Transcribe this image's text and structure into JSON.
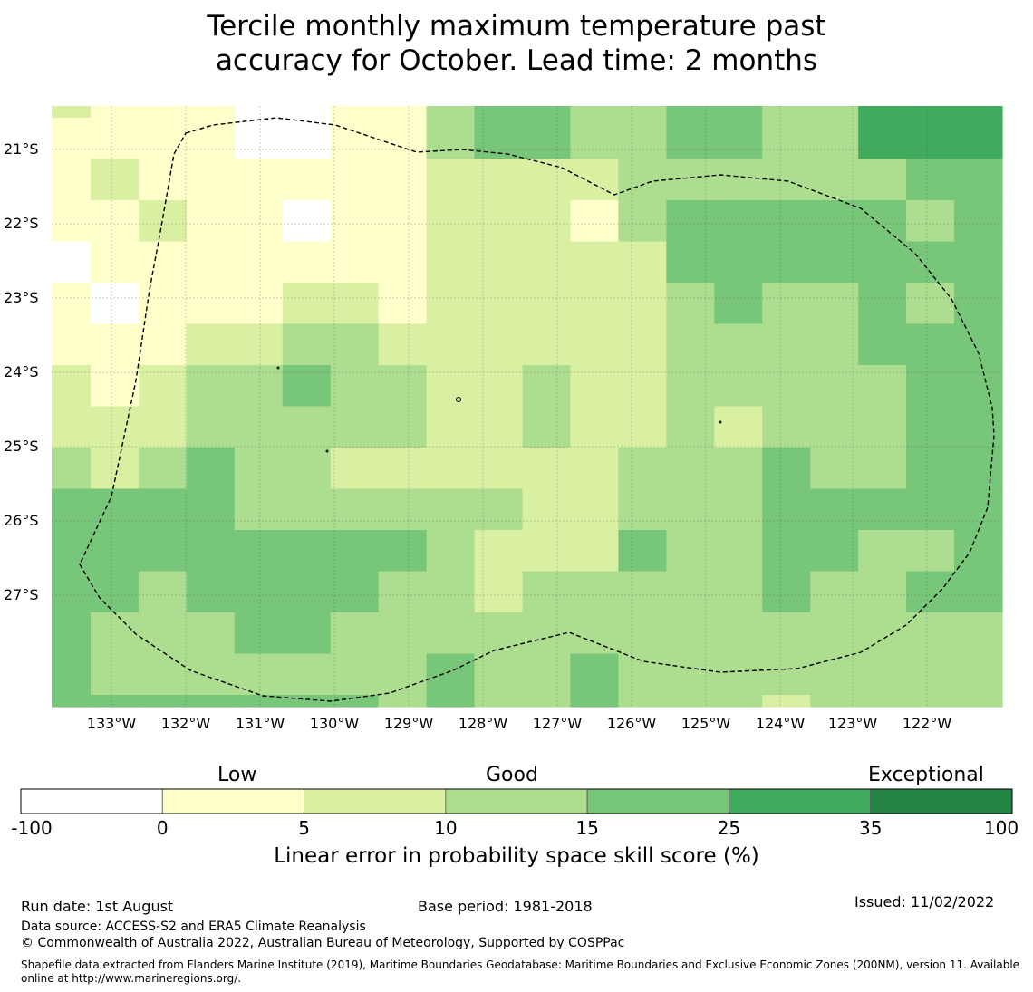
{
  "title": {
    "line1": "Tercile monthly maximum temperature past",
    "line2": "accuracy for October. Lead time: 2 months"
  },
  "map": {
    "lat_labels": [
      "21°S",
      "22°S",
      "23°S",
      "24°S",
      "25°S",
      "26°S",
      "27°S"
    ],
    "lon_labels": [
      "133°W",
      "132°W",
      "131°W",
      "130°W",
      "129°W",
      "128°W",
      "127°W",
      "126°W",
      "125°W",
      "124°W",
      "123°W",
      "122°W"
    ],
    "grid": [
      [
        2,
        1,
        1,
        1,
        0,
        0,
        1,
        1,
        3,
        4,
        4,
        3,
        3,
        4,
        4,
        3,
        3,
        5,
        5,
        5
      ],
      [
        1,
        1,
        1,
        1,
        0,
        0,
        1,
        1,
        3,
        4,
        4,
        3,
        3,
        4,
        4,
        3,
        3,
        5,
        5,
        5
      ],
      [
        1,
        2,
        1,
        1,
        1,
        1,
        1,
        1,
        2,
        2,
        2,
        2,
        3,
        3,
        3,
        3,
        3,
        3,
        4,
        4
      ],
      [
        1,
        1,
        2,
        1,
        1,
        0,
        1,
        1,
        2,
        2,
        2,
        1,
        3,
        4,
        4,
        4,
        4,
        4,
        3,
        4
      ],
      [
        0,
        1,
        1,
        1,
        1,
        1,
        1,
        1,
        2,
        2,
        2,
        2,
        2,
        4,
        4,
        4,
        4,
        4,
        4,
        4
      ],
      [
        1,
        0,
        1,
        1,
        1,
        2,
        2,
        1,
        2,
        2,
        2,
        2,
        2,
        3,
        4,
        3,
        3,
        4,
        3,
        4
      ],
      [
        1,
        1,
        1,
        2,
        2,
        3,
        3,
        2,
        2,
        2,
        2,
        2,
        2,
        3,
        3,
        3,
        3,
        4,
        4,
        4
      ],
      [
        2,
        1,
        2,
        3,
        3,
        4,
        3,
        3,
        2,
        2,
        3,
        2,
        2,
        3,
        3,
        3,
        3,
        3,
        4,
        4
      ],
      [
        2,
        2,
        2,
        3,
        3,
        3,
        3,
        3,
        2,
        2,
        3,
        2,
        2,
        3,
        2,
        3,
        3,
        3,
        4,
        4
      ],
      [
        3,
        2,
        3,
        4,
        3,
        3,
        2,
        2,
        2,
        2,
        2,
        2,
        3,
        3,
        3,
        4,
        3,
        3,
        4,
        4
      ],
      [
        4,
        4,
        4,
        4,
        3,
        3,
        3,
        3,
        3,
        3,
        2,
        2,
        3,
        3,
        3,
        4,
        4,
        4,
        4,
        4
      ],
      [
        4,
        4,
        4,
        4,
        4,
        4,
        4,
        4,
        3,
        2,
        2,
        2,
        4,
        3,
        3,
        4,
        4,
        3,
        3,
        4
      ],
      [
        4,
        4,
        3,
        4,
        4,
        4,
        4,
        3,
        3,
        2,
        3,
        3,
        3,
        3,
        3,
        4,
        3,
        3,
        4,
        4
      ],
      [
        4,
        3,
        3,
        3,
        4,
        4,
        3,
        3,
        3,
        3,
        3,
        3,
        3,
        3,
        3,
        3,
        3,
        3,
        3,
        3
      ],
      [
        4,
        3,
        3,
        3,
        3,
        3,
        3,
        3,
        4,
        3,
        3,
        4,
        3,
        3,
        3,
        3,
        3,
        3,
        3,
        3
      ],
      [
        4,
        4,
        4,
        4,
        4,
        4,
        4,
        3,
        4,
        3,
        3,
        4,
        3,
        3,
        3,
        2,
        3,
        3,
        3,
        3
      ]
    ],
    "grid_row_note": ""
  },
  "colorbar": {
    "categories": [
      "Low",
      "Good",
      "Exceptional"
    ],
    "ticks": [
      "-100",
      "0",
      "5",
      "10",
      "15",
      "25",
      "35",
      "100"
    ],
    "colors": [
      "#ffffff",
      "#ffffcc",
      "#d9f0a3",
      "#addd8e",
      "#78c679",
      "#41ab5d",
      "#238443"
    ],
    "label": "Linear error in probability space skill score (%)"
  },
  "footer": {
    "run_date": "Run date: 1st August",
    "base_period": "Base period: 1981-2018",
    "issued": "Issued: 11/02/2022",
    "data_source": "Data source: ACCESS-S2 and ERA5 Climate Reanalysis",
    "copyright": "© Commonwealth of Australia 2022, Australian Bureau of Meteorology, Supported by COSPPac",
    "shapefile": "Shapefile data extracted from Flanders Marine Institute (2019), Maritime Boundaries Geodatabase: Maritime Boundaries and Exclusive Economic Zones (200NM), version 11. Available online at http://www.marineregions.org/."
  }
}
